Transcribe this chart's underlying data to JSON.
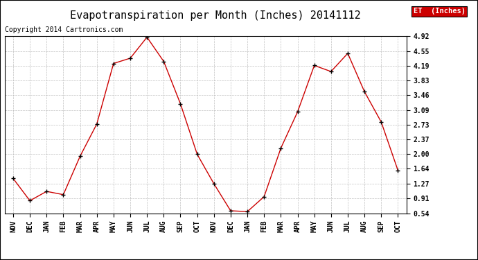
{
  "title": "Evapotranspiration per Month (Inches) 20141112",
  "copyright": "Copyright 2014 Cartronics.com",
  "legend_label": "ET  (Inches)",
  "legend_bg": "#cc0000",
  "legend_text_color": "#ffffff",
  "months": [
    "NOV",
    "DEC",
    "JAN",
    "FEB",
    "MAR",
    "APR",
    "MAY",
    "JUN",
    "JUL",
    "AUG",
    "SEP",
    "OCT",
    "NOV",
    "DEC",
    "JAN",
    "FEB",
    "MAR",
    "APR",
    "MAY",
    "JUN",
    "JUL",
    "AUG",
    "SEP",
    "OCT"
  ],
  "values": [
    1.4,
    0.85,
    1.08,
    1.0,
    1.95,
    2.75,
    4.25,
    4.38,
    4.9,
    4.3,
    3.25,
    2.0,
    1.27,
    0.6,
    0.58,
    0.95,
    2.15,
    3.05,
    4.2,
    4.05,
    4.5,
    3.55,
    2.8,
    1.6
  ],
  "line_color": "#cc0000",
  "marker_color": "#000000",
  "bg_color": "#ffffff",
  "grid_color": "#b0b0b0",
  "yticks": [
    0.54,
    0.91,
    1.27,
    1.64,
    2.0,
    2.37,
    2.73,
    3.09,
    3.46,
    3.83,
    4.19,
    4.55,
    4.92
  ],
  "ylim_min": 0.54,
  "ylim_max": 4.92,
  "title_fontsize": 11,
  "copyright_fontsize": 7
}
